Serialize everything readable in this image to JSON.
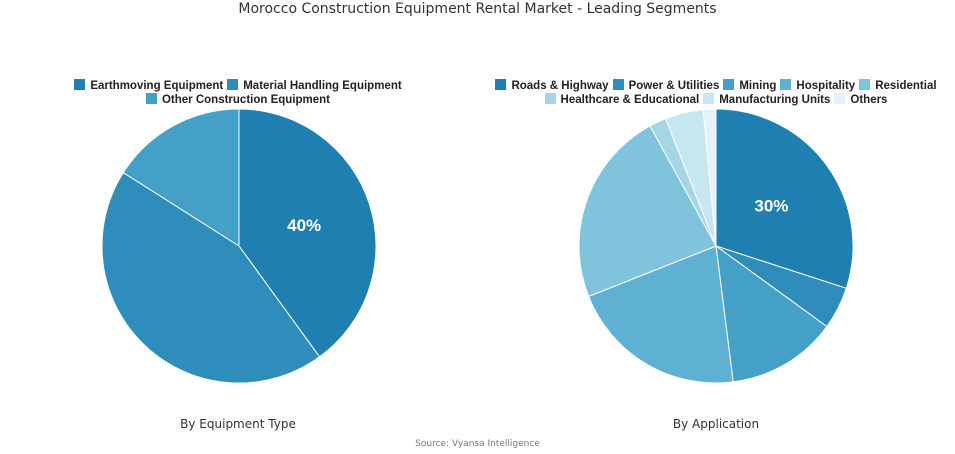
{
  "title": "Morocco Construction Equipment Rental Market - Leading Segments",
  "source": "Source: Vyansa Intelligence",
  "chart_data": [
    {
      "type": "pie",
      "subtitle": "By Equipment Type",
      "legend_rows": [
        [
          0,
          1
        ],
        [
          2
        ]
      ],
      "slices": [
        {
          "name": "Earthmoving Equipment",
          "value": 40,
          "color": "#1f7fb0",
          "label": "40%"
        },
        {
          "name": "Material Handling Equipment",
          "value": 44,
          "color": "#2e8dba",
          "label": ""
        },
        {
          "name": "Other Construction Equipment",
          "value": 16,
          "color": "#45a0c8",
          "label": ""
        }
      ]
    },
    {
      "type": "pie",
      "subtitle": "By Application",
      "legend_rows": [
        [
          0,
          1,
          2,
          3,
          4
        ],
        [
          5,
          6,
          7
        ]
      ],
      "slices": [
        {
          "name": "Roads & Highway",
          "value": 30,
          "color": "#1f7fb0",
          "label": "30%"
        },
        {
          "name": "Power & Utilities",
          "value": 5,
          "color": "#2e8dba",
          "label": ""
        },
        {
          "name": "Mining",
          "value": 13,
          "color": "#45a0c8",
          "label": ""
        },
        {
          "name": "Hospitality",
          "value": 21,
          "color": "#5fb1d3",
          "label": ""
        },
        {
          "name": "Residential",
          "value": 23,
          "color": "#7fc3dd",
          "label": ""
        },
        {
          "name": "Healthcare & Educational",
          "value": 2,
          "color": "#a4d6e8",
          "label": ""
        },
        {
          "name": "Manufacturing Units",
          "value": 4.5,
          "color": "#c6e7f1",
          "label": ""
        },
        {
          "name": "Others",
          "value": 1.5,
          "color": "#e3f3f9",
          "label": ""
        }
      ]
    }
  ]
}
